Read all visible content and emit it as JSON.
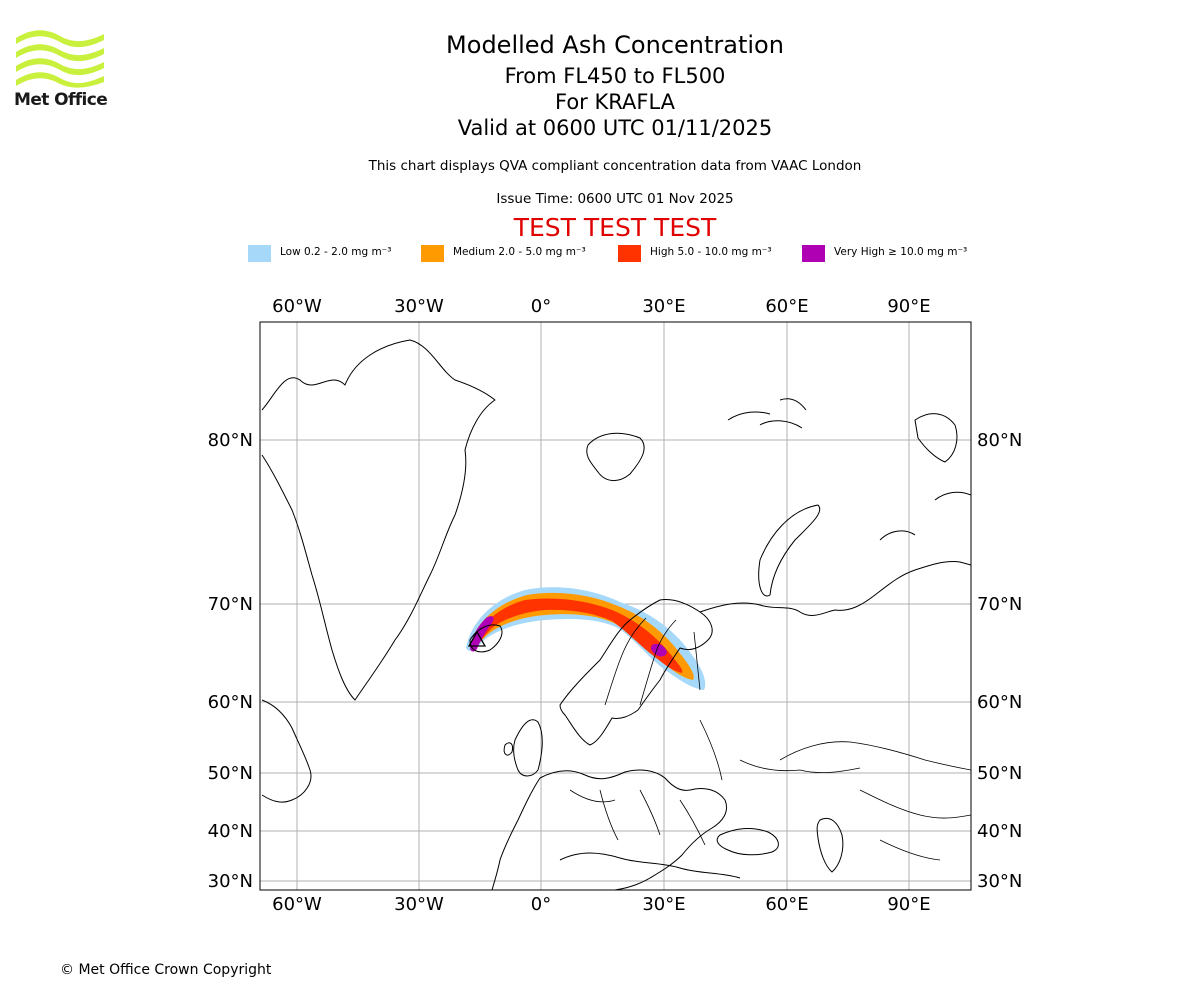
{
  "brand": {
    "name": "Met Office",
    "color": "#c8f03c"
  },
  "header": {
    "title": "Modelled Ash Concentration",
    "levels": "From FL450 to FL500",
    "volcano": "For KRAFLA",
    "valid": "Valid at 0600 UTC 01/11/2025",
    "note": "This chart displays QVA compliant concentration data from VAAC London",
    "issue": "Issue Time: 0600 UTC 01 Nov 2025",
    "test_banner": "TEST TEST TEST"
  },
  "legend": [
    {
      "label": "Low 0.2 - 2.0 mg m⁻³",
      "color": "#a6d8fa"
    },
    {
      "label": "Medium 2.0 - 5.0 mg m⁻³",
      "color": "#ff9a00"
    },
    {
      "label": "High 5.0 - 10.0 mg m⁻³",
      "color": "#ff3300"
    },
    {
      "label": "Very High  ≥  10.0 mg m⁻³",
      "color": "#b000b4"
    }
  ],
  "map": {
    "lon_range": [
      -70,
      105
    ],
    "lat_ticks": [
      "80°N",
      "70°N",
      "60°N",
      "50°N",
      "40°N",
      "30°N"
    ],
    "lon_ticks": [
      "60°W",
      "30°W",
      "0°",
      "30°E",
      "60°E",
      "90°E"
    ],
    "gridlines": true,
    "volcano_marker": "triangle"
  },
  "footer": {
    "copyright": "© Met Office Crown Copyright"
  }
}
